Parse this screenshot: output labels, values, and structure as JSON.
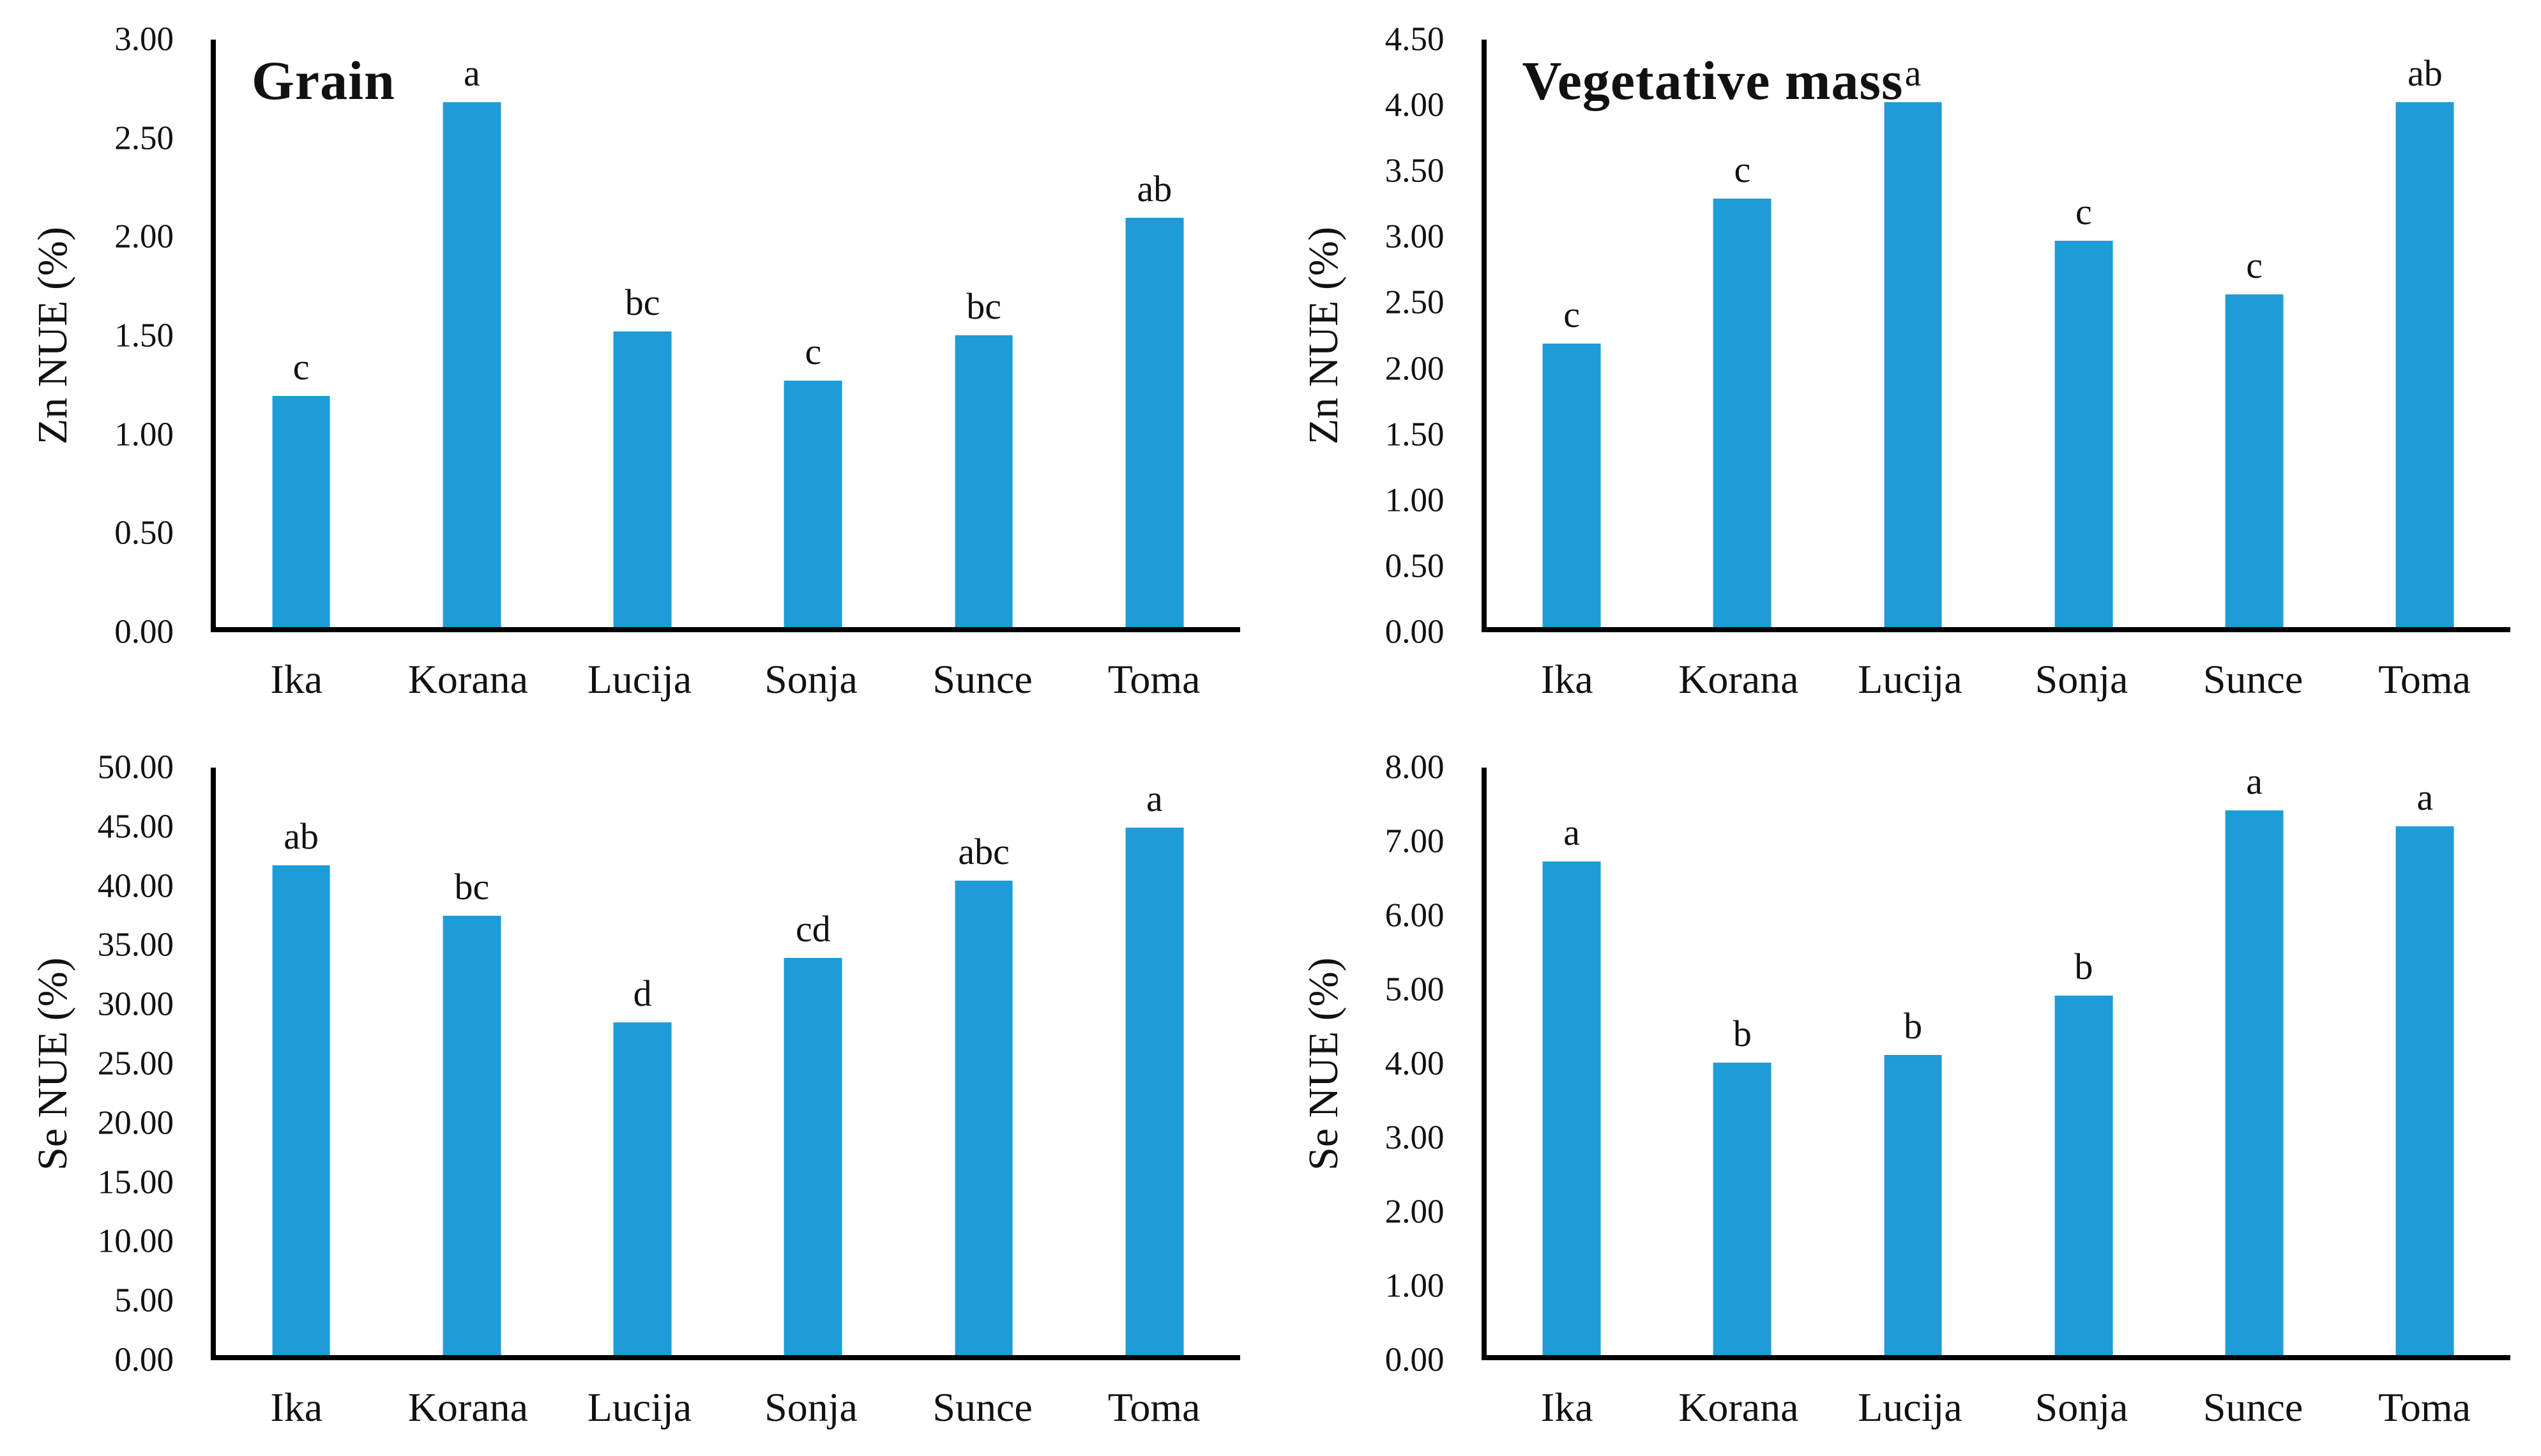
{
  "style": {
    "background": "#ffffff",
    "bar_color": "#1e9cd8",
    "axis_color": "#000000",
    "text_color": "#111111"
  },
  "chart_data": [
    {
      "type": "bar",
      "panel": "top-left",
      "title": "Grain",
      "ylabel": "Zn NUE (%)",
      "xlabel": "",
      "categories": [
        "Ika",
        "Korana",
        "Lucija",
        "Sonja",
        "Sunce",
        "Toma"
      ],
      "values": [
        1.18,
        2.68,
        1.51,
        1.26,
        1.49,
        2.09
      ],
      "sig_letters": [
        "c",
        "a",
        "bc",
        "c",
        "bc",
        "ab"
      ],
      "ylim": [
        0.0,
        3.0
      ],
      "tick_step": 0.5,
      "tick_labels": [
        "3.00",
        "2.50",
        "2.00",
        "1.50",
        "1.00",
        "0.50",
        "0.00"
      ],
      "grid": false,
      "legend": "none"
    },
    {
      "type": "bar",
      "panel": "top-right",
      "title": "Vegetative mass",
      "ylabel": "Zn NUE (%)",
      "xlabel": "",
      "categories": [
        "Ika",
        "Korana",
        "Lucija",
        "Sonja",
        "Sunce",
        "Toma"
      ],
      "values": [
        2.17,
        3.28,
        4.02,
        2.96,
        2.55,
        4.02
      ],
      "sig_letters": [
        "c",
        "c",
        "a",
        "c",
        "c",
        "ab"
      ],
      "ylim": [
        0.0,
        4.5
      ],
      "tick_step": 0.5,
      "tick_labels": [
        "4.50",
        "4.00",
        "3.50",
        "3.00",
        "2.50",
        "2.00",
        "1.50",
        "1.00",
        "0.50",
        "0.00"
      ],
      "grid": false,
      "legend": "none"
    },
    {
      "type": "bar",
      "panel": "bottom-left",
      "title": "",
      "ylabel": "Se NUE (%)",
      "xlabel": "",
      "categories": [
        "Ika",
        "Korana",
        "Lucija",
        "Sonja",
        "Sunce",
        "Toma"
      ],
      "values": [
        41.7,
        37.4,
        28.3,
        33.8,
        40.4,
        44.9
      ],
      "sig_letters": [
        "ab",
        "bc",
        "d",
        "cd",
        "abc",
        "a"
      ],
      "ylim": [
        0.0,
        50.0
      ],
      "tick_step": 5.0,
      "tick_labels": [
        "50.00",
        "45.00",
        "40.00",
        "35.00",
        "30.00",
        "25.00",
        "20.00",
        "15.00",
        "10.00",
        "5.00",
        "0.00"
      ],
      "grid": false,
      "legend": "none"
    },
    {
      "type": "bar",
      "panel": "bottom-right",
      "title": "",
      "ylabel": "Se NUE (%)",
      "xlabel": "",
      "categories": [
        "Ika",
        "Korana",
        "Lucija",
        "Sonja",
        "Sunce",
        "Toma"
      ],
      "values": [
        6.72,
        3.98,
        4.09,
        4.9,
        7.42,
        7.2
      ],
      "sig_letters": [
        "a",
        "b",
        "b",
        "b",
        "a",
        "a"
      ],
      "ylim": [
        0.0,
        8.0
      ],
      "tick_step": 1.0,
      "tick_labels": [
        "8.00",
        "7.00",
        "6.00",
        "5.00",
        "4.00",
        "3.00",
        "2.00",
        "1.00",
        "0.00"
      ],
      "grid": false,
      "legend": "none"
    }
  ]
}
